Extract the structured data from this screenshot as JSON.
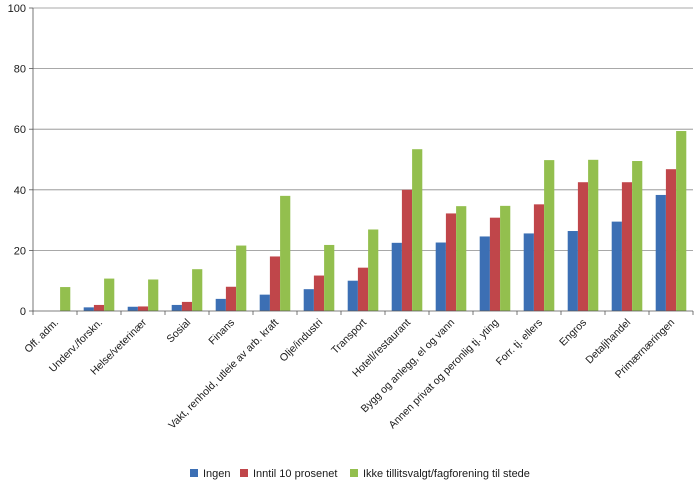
{
  "chart_data": {
    "type": "bar",
    "ylim": [
      0,
      100
    ],
    "yticks": [
      0,
      20,
      40,
      60,
      80,
      100
    ],
    "grid": true,
    "legend_position": "bottom",
    "categories": [
      "Off. adm.",
      "Underv./forskn.",
      "Helse/veterinær",
      "Sosial",
      "Finans",
      "Vakt, renhold, utleie av arb. kraft",
      "Olje/industri",
      "Transport",
      "Hotell/restaurant",
      "Bygg og anlegg, el og vann",
      "Annen privat og peronlig tj. yting",
      "Forr. tj. ellers",
      "Engros",
      "Detaljhandel",
      "Primærnæringen"
    ],
    "series": [
      {
        "name": "Ingen",
        "color": "#3c6fb4",
        "values": [
          0,
          1.2,
          1.4,
          2,
          4,
          5.4,
          7.2,
          10,
          22.5,
          22.6,
          24.6,
          25.6,
          26.4,
          29.5,
          38.3
        ]
      },
      {
        "name": "Inntil 10 prosenet",
        "color": "#c0464a",
        "values": [
          0,
          2,
          1.5,
          3,
          8,
          18,
          11.7,
          14.3,
          40,
          32.2,
          30.8,
          35.2,
          42.5,
          42.5,
          46.8
        ]
      },
      {
        "name": "Ikke tillitsvalgt/fagforening til stede",
        "color": "#93bf4e",
        "values": [
          7.9,
          10.7,
          10.4,
          13.8,
          21.6,
          38,
          21.8,
          26.9,
          53.4,
          34.6,
          34.7,
          49.8,
          49.9,
          49.5,
          59.4
        ]
      }
    ]
  }
}
